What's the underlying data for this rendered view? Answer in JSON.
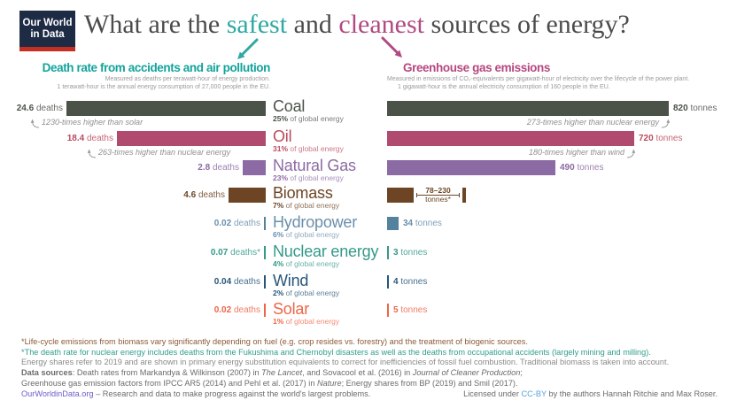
{
  "brand": {
    "line1": "Our World",
    "line2": "in Data",
    "bg": "#1d2b45",
    "bar_color": "#c52f21"
  },
  "title": {
    "prefix": "What are the ",
    "safest": "safest",
    "mid": " and ",
    "cleanest": "cleanest",
    "suffix": " sources of energy?",
    "safest_color": "#2fa9a3",
    "cleanest_color": "#b04a82"
  },
  "left_panel": {
    "heading": "Death rate from accidents and air pollution",
    "sub1": "Measured as deaths per terawatt-hour of energy production.",
    "sub2": "1 terawatt-hour is the annual energy consumption of 27,000 people in the EU.",
    "color": "#12a39c"
  },
  "right_panel": {
    "heading": "Greenhouse gas emissions",
    "sub1": "Measured in emissions of CO₂-equivalents per gigawatt-hour of electricity over the lifecycle of the power plant.",
    "sub2": "1 gigawatt-hour is the annual electricity consumption of 160 people in the EU.",
    "color": "#b5487e"
  },
  "chart_data": {
    "type": "bar",
    "orientation": "horizontal",
    "grid": false,
    "legend_position": "none",
    "title": "What are the safest and cleanest sources of energy?",
    "categories": [
      "Coal",
      "Oil",
      "Natural Gas",
      "Biomass",
      "Hydropower",
      "Nuclear energy",
      "Wind",
      "Solar"
    ],
    "series": [
      {
        "name": "Death rate from accidents and air pollution",
        "unit": "deaths per terawatt-hour",
        "values": [
          24.6,
          18.4,
          2.8,
          4.6,
          0.02,
          0.07,
          0.04,
          0.02
        ]
      },
      {
        "name": "Greenhouse gas emissions",
        "unit": "tonnes of CO₂-equivalents per gigawatt-hour",
        "values": [
          820,
          720,
          490,
          78,
          34,
          3,
          4,
          5
        ],
        "ranges": {
          "Biomass": [
            78,
            230
          ]
        }
      }
    ],
    "share_of_global_energy": [
      "25%",
      "31%",
      "23%",
      "7%",
      "6%",
      "4%",
      "2%",
      "1%"
    ],
    "annotations": [
      "Coal deaths: 1230-times higher than solar",
      "Oil deaths: 263-times higher than nuclear energy",
      "Coal emissions: 273-times higher than nuclear energy",
      "Oil emissions: 180-times higher than wind"
    ]
  },
  "rows": [
    {
      "name": "Coal",
      "share": "25%",
      "share_suffix": " of global energy",
      "deaths": 24.6,
      "death_display": "24.6",
      "death_unit": " deaths",
      "tonnes": 820,
      "tonnes_display": "820",
      "tonnes_unit": " tonnes",
      "bar_color": "#4b5349",
      "text_color": "#4b5349",
      "left_note": "1230-times higher than solar",
      "right_note": "273-times higher than nuclear energy"
    },
    {
      "name": "Oil",
      "share": "31%",
      "share_suffix": " of global energy",
      "deaths": 18.4,
      "death_display": "18.4",
      "death_unit": " deaths",
      "tonnes": 720,
      "tonnes_display": "720",
      "tonnes_unit": " tonnes",
      "bar_color": "#b04a6e",
      "text_color": "#bb4a5c",
      "left_note": "263-times higher than nuclear energy",
      "right_note": "180-times higher than wind"
    },
    {
      "name": "Natural Gas",
      "share": "23%",
      "share_suffix": " of global energy",
      "deaths": 2.8,
      "death_display": "2.8",
      "death_unit": " deaths",
      "tonnes": 490,
      "tonnes_display": "490",
      "tonnes_unit": " tonnes",
      "bar_color": "#8c6ba4",
      "text_color": "#8c6ba4"
    },
    {
      "name": "Biomass",
      "share": "7%",
      "share_suffix": " of global energy",
      "deaths": 4.6,
      "death_display": "4.6",
      "death_unit": " deaths",
      "tonnes": 78,
      "tonnes_display": "",
      "tonnes_unit": "",
      "range_max": 230,
      "range_label_1": "78–230",
      "range_label_2": "tonnes*",
      "bar_color": "#6d4524",
      "text_color": "#6d4524"
    },
    {
      "name": "Hydropower",
      "share": "6%",
      "share_suffix": " of global energy",
      "deaths": 0.02,
      "death_display": "0.02",
      "death_unit": " deaths",
      "tonnes": 34,
      "tonnes_display": "34",
      "tonnes_unit": " tonnes",
      "bar_color": "#54819d",
      "text_color": "#6a8fac"
    },
    {
      "name": "Nuclear energy",
      "share": "4%",
      "share_suffix": " of global energy",
      "deaths": 0.07,
      "death_display": "0.07",
      "death_unit": " deaths*",
      "tonnes": 3,
      "tonnes_display": "3",
      "tonnes_unit": " tonnes",
      "bar_color": "#33998a",
      "text_color": "#33998a"
    },
    {
      "name": "Wind",
      "share": "2%",
      "share_suffix": " of global energy",
      "deaths": 0.04,
      "death_display": "0.04",
      "death_unit": " deaths",
      "tonnes": 4,
      "tonnes_display": "4",
      "tonnes_unit": " tonnes",
      "bar_color": "#27567a",
      "text_color": "#27567a"
    },
    {
      "name": "Solar",
      "share": "1%",
      "share_suffix": " of global energy",
      "deaths": 0.02,
      "death_display": "0.02",
      "death_unit": " deaths",
      "tonnes": 5,
      "tonnes_display": "5",
      "tonnes_unit": " tonnes",
      "bar_color": "#ee6547",
      "text_color": "#ee6547"
    }
  ],
  "footnotes": [
    {
      "color": "#8a5a36",
      "segments": [
        {
          "t": "*Life-cycle emissions from biomass vary significantly depending on fuel (e.g. crop resides vs. forestry) and the treatment of biogenic sources."
        }
      ]
    },
    {
      "color": "#2f9e8c",
      "segments": [
        {
          "t": "*The death rate for nuclear energy includes deaths from the Fukushima and Chernobyl disasters as well as the deaths from occupational accidents (largely mining and milling)."
        }
      ]
    },
    {
      "color": "#8a8a8a",
      "segments": [
        {
          "t": " Energy shares refer to 2019 and are shown in primary energy substitution equivalents to correct for inefficiencies of fossil fuel combustion. Traditional biomass is taken into account."
        }
      ]
    },
    {
      "color": "#6b6b6b",
      "segments": [
        {
          "t": "Data sources",
          "b": true
        },
        {
          "t": ": Death rates from Markandya & Wilkinson (2007) in "
        },
        {
          "t": "The Lancet",
          "i": true
        },
        {
          "t": ", and Sovacool et al. (2016) in "
        },
        {
          "t": "Journal of Cleaner Production",
          "i": true
        },
        {
          "t": ";"
        }
      ]
    },
    {
      "color": "#6b6b6b",
      "segments": [
        {
          "t": "Greenhouse gas emission factors from IPCC AR5 (2014) and Pehl et al. (2017) in "
        },
        {
          "t": "Nature",
          "i": true
        },
        {
          "t": "; Energy shares from BP (2019) and Smil (2017)."
        }
      ]
    }
  ],
  "footer_bottom": {
    "link": "OurWorldinData.org",
    "rest": " – Research and data to make progress against the world's largest problems.",
    "link_color": "#6a5fc9"
  },
  "license": {
    "prefix": "Licensed under ",
    "link": "CC-BY",
    "suffix": " by the authors Hannah Ritchie and Max Roser.",
    "link_color": "#56a3d9"
  }
}
